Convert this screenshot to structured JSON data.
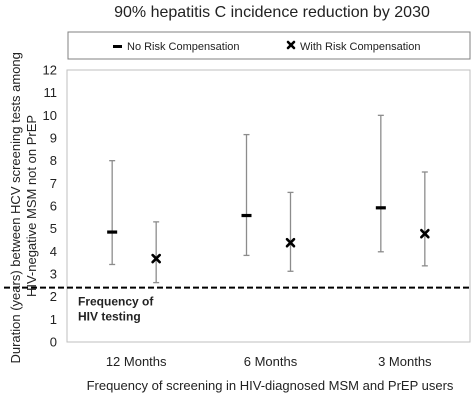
{
  "chart_data": {
    "type": "scatter",
    "title": "90% hepatitis C incidence reduction by 2030",
    "xlabel": "Frequency of screening in HIV-diagnosed MSM and PrEP users",
    "ylabel_lines": [
      "Duration (years) between HCV screening tests among",
      "HIV-negative MSM not on PrEP"
    ],
    "ylim": [
      0,
      12
    ],
    "yticks": [
      0,
      1,
      2,
      3,
      4,
      5,
      6,
      7,
      8,
      9,
      10,
      11,
      12
    ],
    "categories": [
      "12 Months",
      "6 Months",
      "3 Months"
    ],
    "series": [
      {
        "name": "No Risk Compensation",
        "marker": "dash",
        "values": [
          4.85,
          5.58,
          5.92
        ],
        "lower": [
          3.42,
          3.82,
          3.98
        ],
        "upper": [
          8.0,
          9.15,
          10.0
        ]
      },
      {
        "name": "With Risk Compensation",
        "marker": "cross",
        "values": [
          3.68,
          4.38,
          4.78
        ],
        "lower": [
          2.62,
          3.12,
          3.36
        ],
        "upper": [
          5.3,
          6.6,
          7.5
        ]
      }
    ],
    "reference_line": {
      "value": 2.4,
      "label_lines": [
        "Frequency of",
        "HIV testing"
      ],
      "style": "dashed"
    },
    "legend_position": "top",
    "grid": false,
    "colors": {
      "errorbar": "#8c8c8c",
      "marker": "#000000",
      "axis": "#bfbfbf",
      "text": "#222222"
    }
  }
}
